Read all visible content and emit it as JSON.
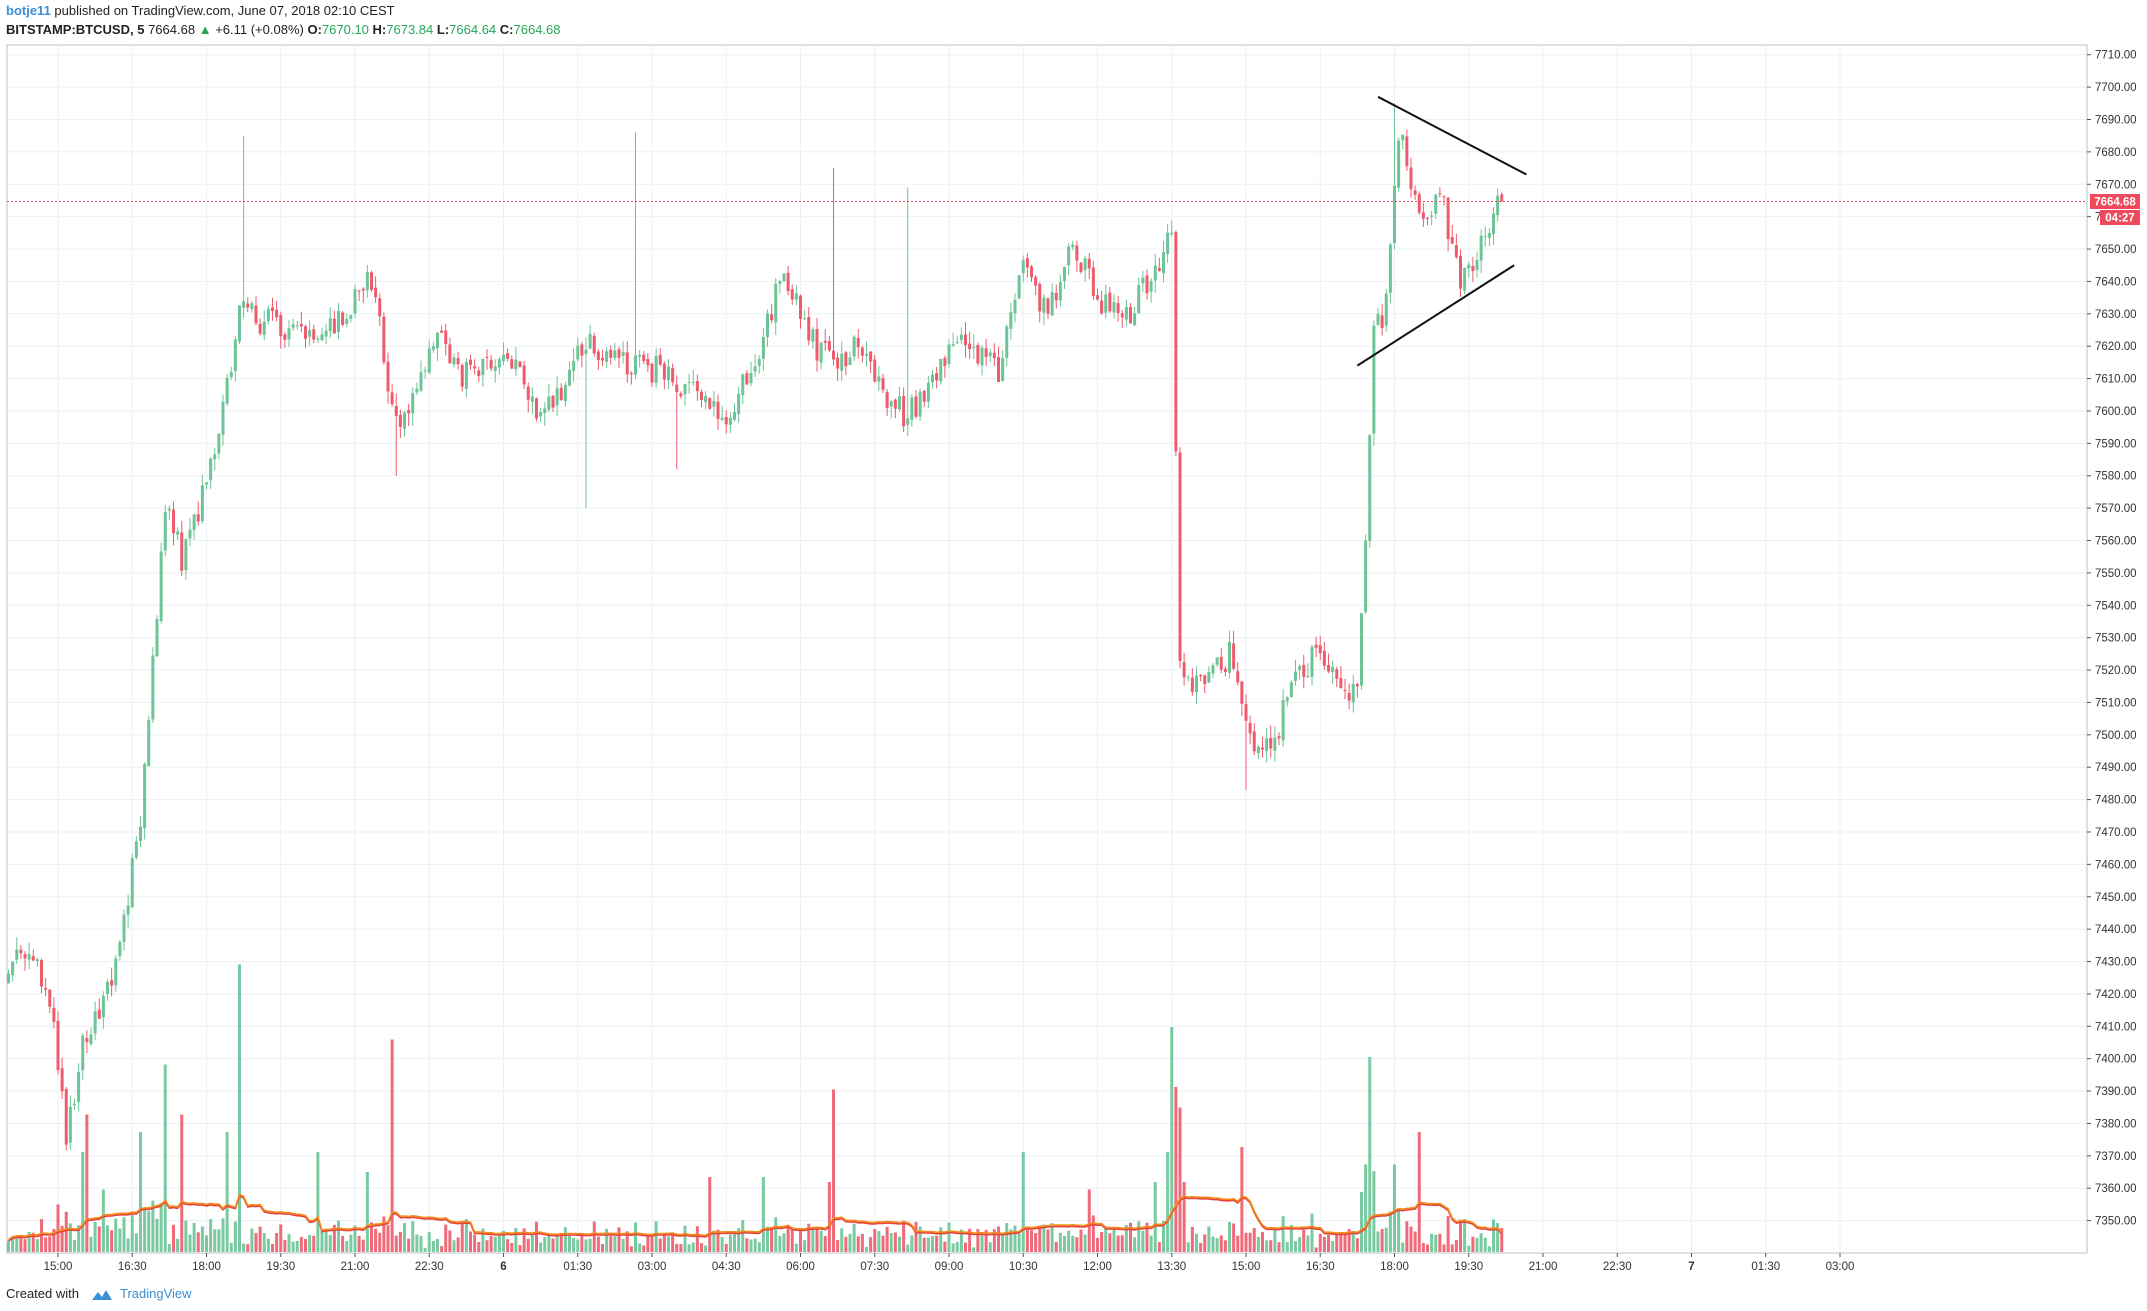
{
  "header": {
    "author": "botje11",
    "published_text": "published on TradingView.com, June 07, 2018 02:10 CEST",
    "symbol": "BITSTAMP:BTCUSD, 5",
    "last": "7664.68",
    "change": "+6.11 (+0.08%)",
    "o_label": "O:",
    "o_value": "7670.10",
    "h_label": "H:",
    "h_value": "7673.84",
    "l_label": "L:",
    "l_value": "7664.64",
    "c_label": "C:",
    "c_value": "7664.68"
  },
  "footer": {
    "created_with": "Created with",
    "brand": "TradingView"
  },
  "price_badge": "7664.68",
  "countdown_badge": "04:27",
  "colors": {
    "up": "#6cc497",
    "down": "#ee5b6c",
    "grid": "#eaf0f5",
    "ma_orange": "#f28b1d",
    "ma_red": "#e5403c",
    "accent": "#3a8fd6"
  },
  "chart_data": {
    "type": "candlestick",
    "interval": "5",
    "y_axis": {
      "ylim": [
        7340,
        7713
      ],
      "ticks": [
        "7710.00",
        "7700.00",
        "7690.00",
        "7680.00",
        "7670.00",
        "7660.00",
        "7650.00",
        "7640.00",
        "7630.00",
        "7620.00",
        "7610.00",
        "7600.00",
        "7590.00",
        "7580.00",
        "7570.00",
        "7560.00",
        "7550.00",
        "7540.00",
        "7530.00",
        "7520.00",
        "7510.00",
        "7500.00",
        "7490.00",
        "7480.00",
        "7470.00",
        "7460.00",
        "7450.00",
        "7440.00",
        "7430.00",
        "7420.00",
        "7410.00",
        "7400.00",
        "7390.00",
        "7380.00",
        "7370.00",
        "7360.00",
        "7350.00"
      ]
    },
    "x_axis": {
      "ticks": [
        {
          "label": "15:00",
          "bold": false
        },
        {
          "label": "16:30",
          "bold": false
        },
        {
          "label": "18:00",
          "bold": false
        },
        {
          "label": "19:30",
          "bold": false
        },
        {
          "label": "21:00",
          "bold": false
        },
        {
          "label": "22:30",
          "bold": false
        },
        {
          "label": "6",
          "bold": true
        },
        {
          "label": "01:30",
          "bold": false
        },
        {
          "label": "03:00",
          "bold": false
        },
        {
          "label": "04:30",
          "bold": false
        },
        {
          "label": "06:00",
          "bold": false
        },
        {
          "label": "07:30",
          "bold": false
        },
        {
          "label": "09:00",
          "bold": false
        },
        {
          "label": "10:30",
          "bold": false
        },
        {
          "label": "12:00",
          "bold": false
        },
        {
          "label": "13:30",
          "bold": false
        },
        {
          "label": "15:00",
          "bold": false
        },
        {
          "label": "16:30",
          "bold": false
        },
        {
          "label": "18:00",
          "bold": false
        },
        {
          "label": "19:30",
          "bold": false
        },
        {
          "label": "21:00",
          "bold": false
        },
        {
          "label": "22:30",
          "bold": false
        },
        {
          "label": "7",
          "bold": true
        },
        {
          "label": "01:30",
          "bold": false
        },
        {
          "label": "03:00",
          "bold": false
        }
      ]
    },
    "last_price": 7664.68,
    "close_anchors": [
      [
        0,
        7430
      ],
      [
        6,
        7432
      ],
      [
        10,
        7418
      ],
      [
        14,
        7375
      ],
      [
        18,
        7405
      ],
      [
        24,
        7420
      ],
      [
        32,
        7470
      ],
      [
        38,
        7572
      ],
      [
        42,
        7555
      ],
      [
        46,
        7570
      ],
      [
        52,
        7600
      ],
      [
        56,
        7630
      ],
      [
        70,
        7625
      ],
      [
        80,
        7628
      ],
      [
        88,
        7640
      ],
      [
        94,
        7595
      ],
      [
        98,
        7605
      ],
      [
        104,
        7625
      ],
      [
        110,
        7612
      ],
      [
        120,
        7618
      ],
      [
        130,
        7598
      ],
      [
        140,
        7622
      ],
      [
        150,
        7615
      ],
      [
        160,
        7612
      ],
      [
        170,
        7600
      ],
      [
        175,
        7598
      ],
      [
        182,
        7620
      ],
      [
        188,
        7645
      ],
      [
        194,
        7622
      ],
      [
        200,
        7615
      ],
      [
        206,
        7620
      ],
      [
        212,
        7605
      ],
      [
        218,
        7598
      ],
      [
        224,
        7610
      ],
      [
        230,
        7625
      ],
      [
        240,
        7612
      ],
      [
        246,
        7645
      ],
      [
        252,
        7630
      ],
      [
        258,
        7652
      ],
      [
        265,
        7632
      ],
      [
        272,
        7630
      ],
      [
        278,
        7645
      ],
      [
        282,
        7655
      ],
      [
        284,
        7520
      ],
      [
        290,
        7515
      ],
      [
        296,
        7525
      ],
      [
        300,
        7500
      ],
      [
        306,
        7495
      ],
      [
        312,
        7520
      ],
      [
        318,
        7525
      ],
      [
        324,
        7515
      ],
      [
        327,
        7515
      ],
      [
        329,
        7560
      ],
      [
        331,
        7625
      ],
      [
        334,
        7632
      ],
      [
        337,
        7688
      ],
      [
        342,
        7660
      ],
      [
        347,
        7668
      ],
      [
        352,
        7640
      ],
      [
        357,
        7650
      ],
      [
        362,
        7665
      ]
    ],
    "wick_spikes": [
      {
        "i": 57,
        "high": 7685
      },
      {
        "i": 94,
        "low": 7580
      },
      {
        "i": 140,
        "low": 7570
      },
      {
        "i": 152,
        "high": 7686
      },
      {
        "i": 162,
        "low": 7582
      },
      {
        "i": 200,
        "high": 7675
      },
      {
        "i": 218,
        "high": 7669
      },
      {
        "i": 300,
        "low": 7483
      },
      {
        "i": 336,
        "high": 7695
      }
    ],
    "volume_scale_max": 120,
    "volume_spikes": [
      {
        "i": 18,
        "v": 40
      },
      {
        "i": 19,
        "v": 55
      },
      {
        "i": 23,
        "v": 25
      },
      {
        "i": 32,
        "v": 48
      },
      {
        "i": 38,
        "v": 75
      },
      {
        "i": 42,
        "v": 55
      },
      {
        "i": 53,
        "v": 48
      },
      {
        "i": 56,
        "v": 115
      },
      {
        "i": 75,
        "v": 40
      },
      {
        "i": 87,
        "v": 32
      },
      {
        "i": 93,
        "v": 85
      },
      {
        "i": 170,
        "v": 30
      },
      {
        "i": 183,
        "v": 30
      },
      {
        "i": 200,
        "v": 65
      },
      {
        "i": 199,
        "v": 28
      },
      {
        "i": 246,
        "v": 40
      },
      {
        "i": 262,
        "v": 25
      },
      {
        "i": 278,
        "v": 28
      },
      {
        "i": 282,
        "v": 90
      },
      {
        "i": 283,
        "v": 66
      },
      {
        "i": 281,
        "v": 40
      },
      {
        "i": 285,
        "v": 28
      },
      {
        "i": 299,
        "v": 42
      },
      {
        "i": 329,
        "v": 35
      },
      {
        "i": 330,
        "v": 78
      },
      {
        "i": 336,
        "v": 66
      },
      {
        "i": 336,
        "v": 35
      },
      {
        "i": 342,
        "v": 48
      }
    ],
    "trendlines": [
      {
        "name": "upper-resistance",
        "from": {
          "i": 332,
          "price": 7697
        },
        "to": {
          "i": 368,
          "price": 7673
        }
      },
      {
        "name": "lower-support",
        "from": {
          "i": 327,
          "price": 7614
        },
        "to": {
          "i": 365,
          "price": 7645
        }
      }
    ]
  }
}
